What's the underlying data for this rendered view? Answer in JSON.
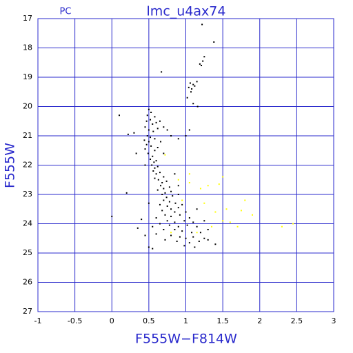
{
  "chart_data": {
    "type": "scatter",
    "title": "lmc_u4ax74",
    "corner_label": "PC",
    "x_label": "F555W−F814W",
    "y_label": "F555W",
    "xlim": [
      -1,
      3
    ],
    "ylim": [
      27,
      17
    ],
    "xticks": [
      -1,
      -0.5,
      0,
      0.5,
      1,
      1.5,
      2,
      2.5,
      3
    ],
    "yticks": [
      17,
      18,
      19,
      20,
      21,
      22,
      23,
      24,
      25,
      26,
      27
    ],
    "grid": true,
    "axis_color": "#2a2acc",
    "series": [
      {
        "color": "#000000",
        "x": [
          1.22,
          1.38,
          1.25,
          1.23,
          1.19,
          1.21,
          0.67,
          1.06,
          1.1,
          1.04,
          1.08,
          1.12,
          1.07,
          1.15,
          1.02,
          1.1,
          1.16,
          0.5,
          0.53,
          0.48,
          0.58,
          0.1,
          0.52,
          0.47,
          0.6,
          0.65,
          0.55,
          0.45,
          0.5,
          0.56,
          0.62,
          0.7,
          0.75,
          0.3,
          0.22,
          0.48,
          0.52,
          0.58,
          0.44,
          0.5,
          0.66,
          0.8,
          0.9,
          1.0,
          1.05,
          0.47,
          0.53,
          0.45,
          0.58,
          0.62,
          0.49,
          0.55,
          0.7,
          0.52,
          0.57,
          0.6,
          0.33,
          0.54,
          0.58,
          0.62,
          0.56,
          0.6,
          0.65,
          0.7,
          0.58,
          0.63,
          0.68,
          0.74,
          0.66,
          0.7,
          0.78,
          0.62,
          0.72,
          0.8,
          0.68,
          0.74,
          0.82,
          0.9,
          0.2,
          0.7,
          0.78,
          0.86,
          0.65,
          0.75,
          0.8,
          0.9,
          0.95,
          0.68,
          0.85,
          1.0,
          0.72,
          0.8,
          0.92,
          1.05,
          0.6,
          0.75,
          0.85,
          0.98,
          1.1,
          0.4,
          0.0,
          0.65,
          0.78,
          0.9,
          1.02,
          1.15,
          0.55,
          0.7,
          0.85,
          0.95,
          1.08,
          1.2,
          0.6,
          0.8,
          0.92,
          1.0,
          1.1,
          1.25,
          0.45,
          0.72,
          0.88,
          1.05,
          1.18,
          1.3,
          1.4,
          0.5,
          0.55,
          0.98,
          1.12,
          0.35,
          1.3,
          1.15,
          1.25,
          0.5,
          0.85,
          0.9,
          0.45
        ],
        "y": [
          17.2,
          17.8,
          18.3,
          18.45,
          18.55,
          18.6,
          18.82,
          19.2,
          19.25,
          19.35,
          19.4,
          19.3,
          19.5,
          19.15,
          19.7,
          19.9,
          20.0,
          20.1,
          20.2,
          20.3,
          20.35,
          20.3,
          20.45,
          20.5,
          20.55,
          20.5,
          20.6,
          20.7,
          20.8,
          20.85,
          20.75,
          20.7,
          20.8,
          20.9,
          20.95,
          21.0,
          21.05,
          21.1,
          21.15,
          21.2,
          21.2,
          21.0,
          21.1,
          21.0,
          20.8,
          21.3,
          21.35,
          21.45,
          21.5,
          21.4,
          21.6,
          21.7,
          21.6,
          21.8,
          21.9,
          21.85,
          21.6,
          22.0,
          22.1,
          22.05,
          22.2,
          22.3,
          22.25,
          22.4,
          22.45,
          22.5,
          22.6,
          22.55,
          22.7,
          22.8,
          22.75,
          22.85,
          22.95,
          22.9,
          23.0,
          23.1,
          23.05,
          23.0,
          22.95,
          23.2,
          23.25,
          23.3,
          23.35,
          23.4,
          23.5,
          23.45,
          23.35,
          23.55,
          23.6,
          23.6,
          23.7,
          23.75,
          23.7,
          23.8,
          23.8,
          23.9,
          23.95,
          23.9,
          23.95,
          23.85,
          23.75,
          24.0,
          24.05,
          24.1,
          24.05,
          24.1,
          24.1,
          24.2,
          24.2,
          24.25,
          24.3,
          24.3,
          24.35,
          24.4,
          24.45,
          24.5,
          24.45,
          24.5,
          24.4,
          24.55,
          24.6,
          24.65,
          24.6,
          24.55,
          24.7,
          24.8,
          24.85,
          24.75,
          24.8,
          24.15,
          24.2,
          23.5,
          23.9,
          23.3,
          22.3,
          22.7,
          22.0
        ]
      },
      {
        "color": "#ffff00",
        "x": [
          0.72,
          0.9,
          1.05,
          1.2,
          1.3,
          1.45,
          1.5,
          1.55,
          1.75,
          1.8,
          1.4,
          1.5,
          1.6,
          1.9,
          2.3,
          2.45,
          1.35,
          1.15,
          0.95,
          1.25,
          0.8,
          1.05,
          1.7
        ],
        "y": [
          21.65,
          22.5,
          22.6,
          22.8,
          22.7,
          22.65,
          22.4,
          23.5,
          23.55,
          23.2,
          23.6,
          23.9,
          23.95,
          23.7,
          24.1,
          24.0,
          24.1,
          24.3,
          23.2,
          23.3,
          24.3,
          22.3,
          24.1
        ]
      }
    ]
  }
}
